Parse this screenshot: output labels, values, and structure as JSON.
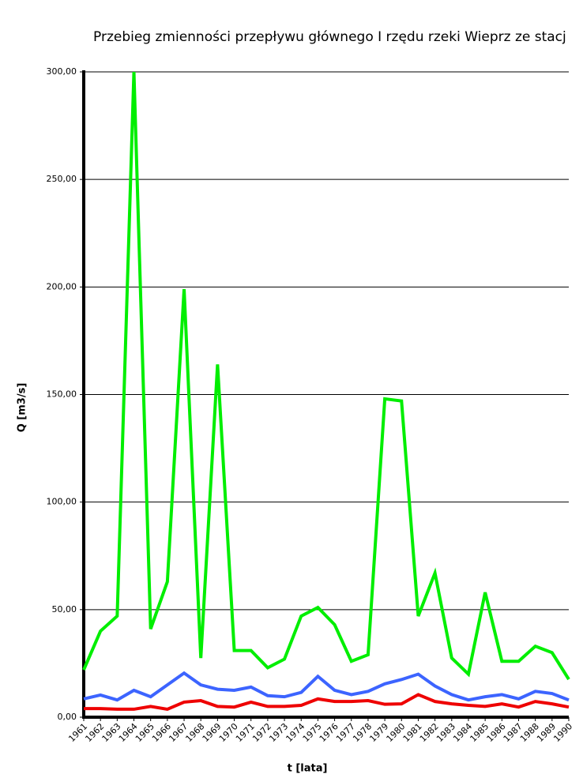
{
  "chart_data": {
    "type": "line",
    "title": "Przebieg zmienności przepływu głównego I rzędu rzeki Wieprz ze stacj",
    "x_label": "t [lata]",
    "y_label": "Q [m3/s]",
    "categories": [
      "1961",
      "1962",
      "1963",
      "1964",
      "1965",
      "1966",
      "1967",
      "1968",
      "1969",
      "1970",
      "1971",
      "1972",
      "1973",
      "1974",
      "1975",
      "1976",
      "1977",
      "1978",
      "1979",
      "1980",
      "1981",
      "1982",
      "1983",
      "1984",
      "1985",
      "1986",
      "1987",
      "1988",
      "1989",
      "1990"
    ],
    "series": [
      {
        "color": "#00ee00",
        "values": [
          22,
          40,
          47,
          300,
          41,
          63,
          199,
          27.5,
          164,
          31,
          31,
          23,
          27,
          47,
          51,
          43,
          26,
          29,
          148,
          147,
          47,
          67,
          27.5,
          20,
          58,
          26,
          26,
          33,
          30,
          17.6
        ]
      },
      {
        "color": "#3c64ff",
        "values": [
          8.5,
          10.3,
          8,
          12.5,
          9.5,
          15,
          20.5,
          15,
          13,
          12.5,
          14,
          10,
          9.5,
          11.5,
          19,
          12.5,
          10.5,
          12,
          15.5,
          17.5,
          20,
          14.5,
          10.5,
          8,
          9.5,
          10.5,
          8.5,
          12,
          11,
          8
        ]
      },
      {
        "color": "#ee0000",
        "values": [
          4,
          4,
          3.7,
          3.7,
          5,
          3.7,
          7,
          7.7,
          5,
          4.7,
          7,
          5,
          5,
          5.5,
          8.5,
          7.3,
          7.3,
          7.7,
          6,
          6.2,
          10.5,
          7.3,
          6.2,
          5.5,
          5,
          6.2,
          4.7,
          7.3,
          6.2,
          4.7
        ]
      }
    ],
    "ylim": [
      0,
      300
    ],
    "yticks": [
      {
        "value": 0,
        "label": "0,00"
      },
      {
        "value": 50,
        "label": "50,00"
      },
      {
        "value": 100,
        "label": "100,00"
      },
      {
        "value": 150,
        "label": "150,00"
      },
      {
        "value": 200,
        "label": "200,00"
      },
      {
        "value": 250,
        "label": "250,00"
      },
      {
        "value": 300,
        "label": "300,00"
      }
    ],
    "grid": true
  }
}
